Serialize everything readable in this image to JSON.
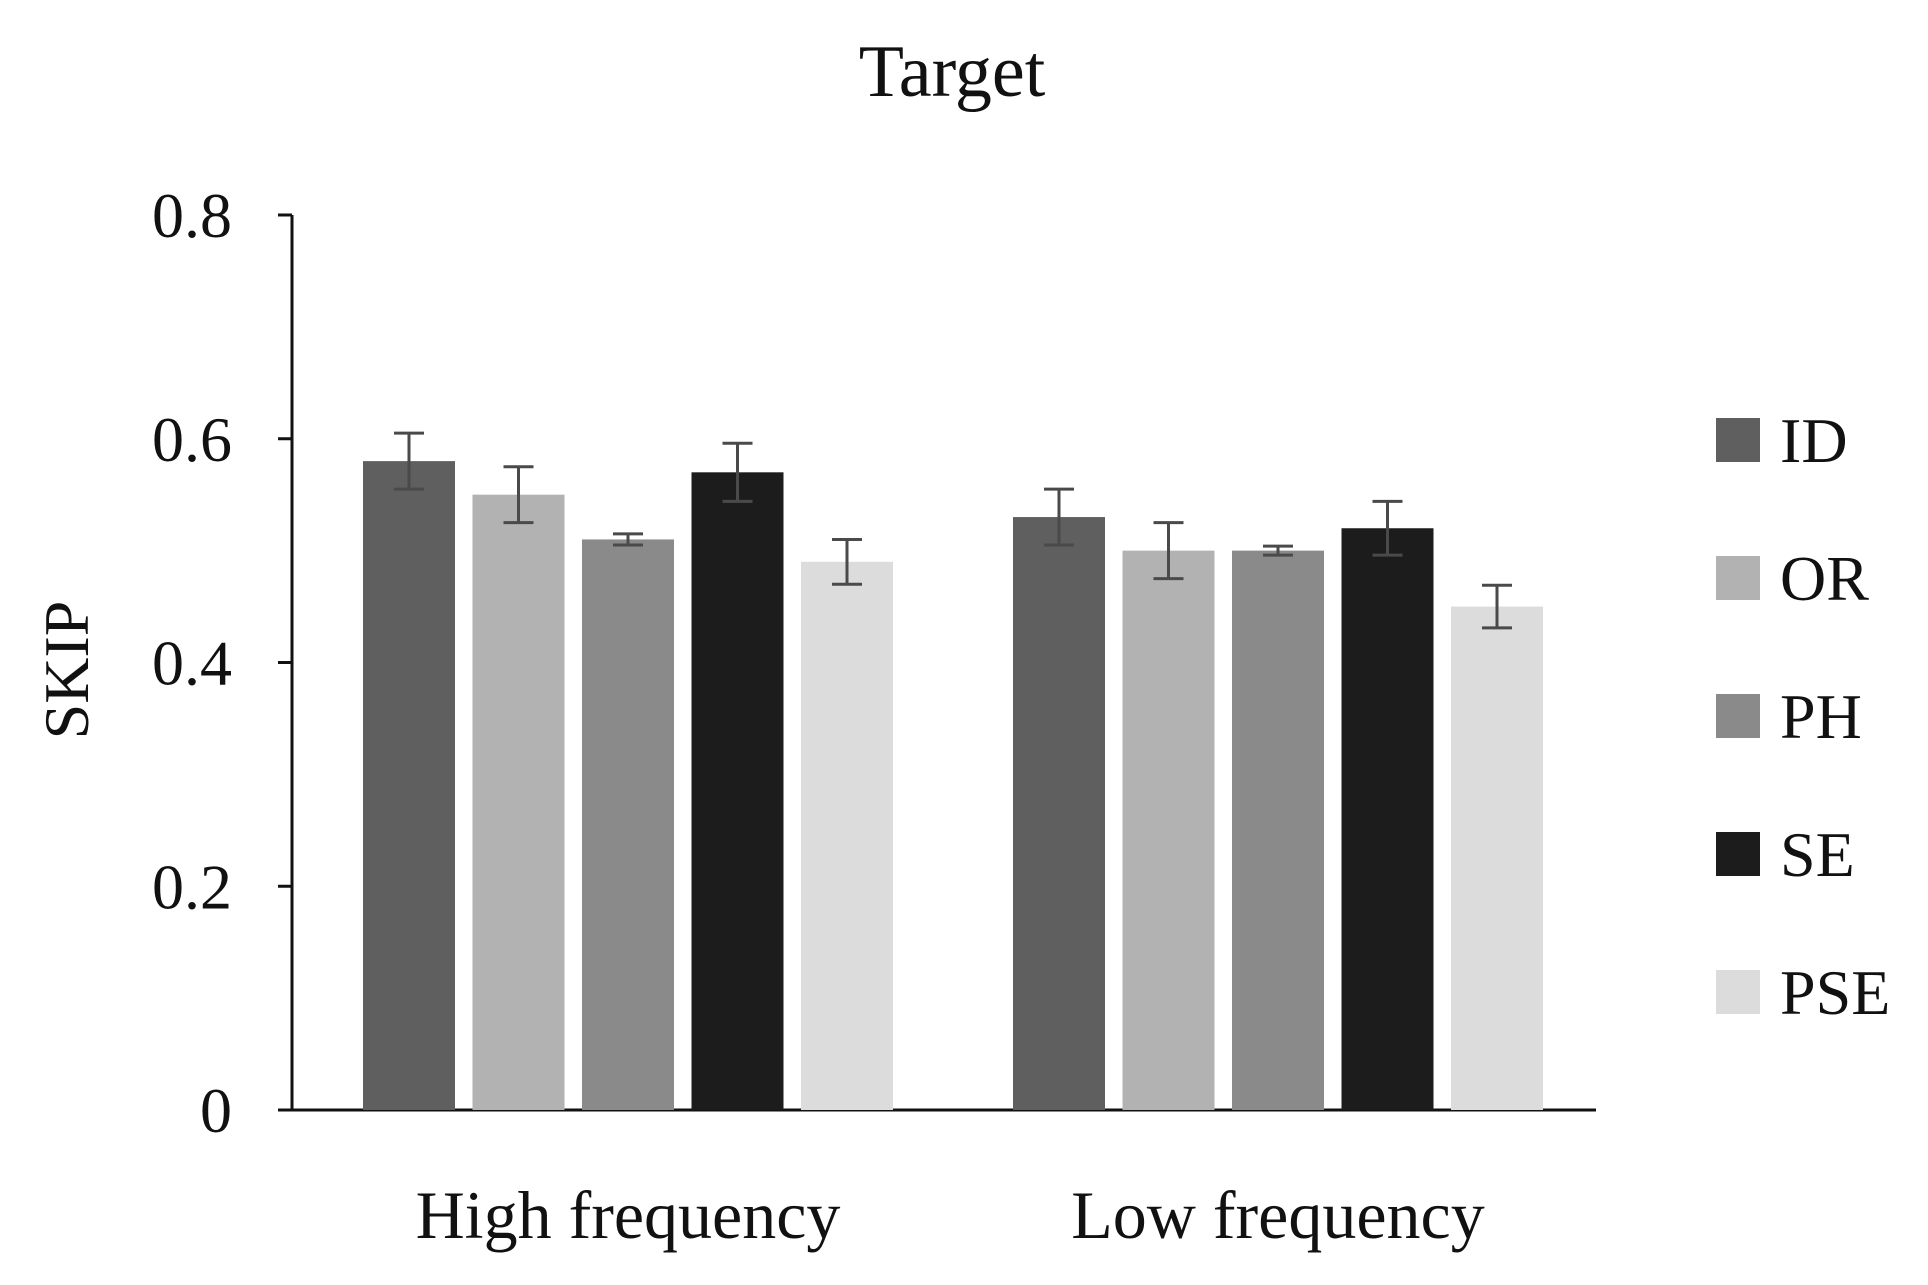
{
  "chart_data": {
    "type": "bar",
    "title": "Target",
    "ylabel": "SKIP",
    "xlabel": "",
    "ylim": [
      0,
      0.8
    ],
    "yticks": [
      0,
      0.2,
      0.4,
      0.6,
      0.8
    ],
    "ytick_labels": [
      "0",
      "0.2",
      "0.4",
      "0.6",
      "0.8"
    ],
    "categories": [
      "High frequency",
      "Low frequency"
    ],
    "grid": false,
    "legend_position": "right",
    "series": [
      {
        "name": "ID",
        "color": "#5f5f5f",
        "values": [
          0.58,
          0.53
        ],
        "errors": [
          0.025,
          0.025
        ]
      },
      {
        "name": "OR",
        "color": "#b2b2b2",
        "values": [
          0.55,
          0.5
        ],
        "errors": [
          0.025,
          0.025
        ]
      },
      {
        "name": "PH",
        "color": "#8a8a8a",
        "values": [
          0.51,
          0.5
        ],
        "errors": [
          0.005,
          0.004
        ]
      },
      {
        "name": "SE",
        "color": "#1c1c1c",
        "values": [
          0.57,
          0.52
        ],
        "errors": [
          0.026,
          0.024
        ]
      },
      {
        "name": "PSE",
        "color": "#dcdcdc",
        "values": [
          0.49,
          0.45
        ],
        "errors": [
          0.02,
          0.019
        ]
      }
    ],
    "error_bar_color": "#4a4a4a"
  }
}
